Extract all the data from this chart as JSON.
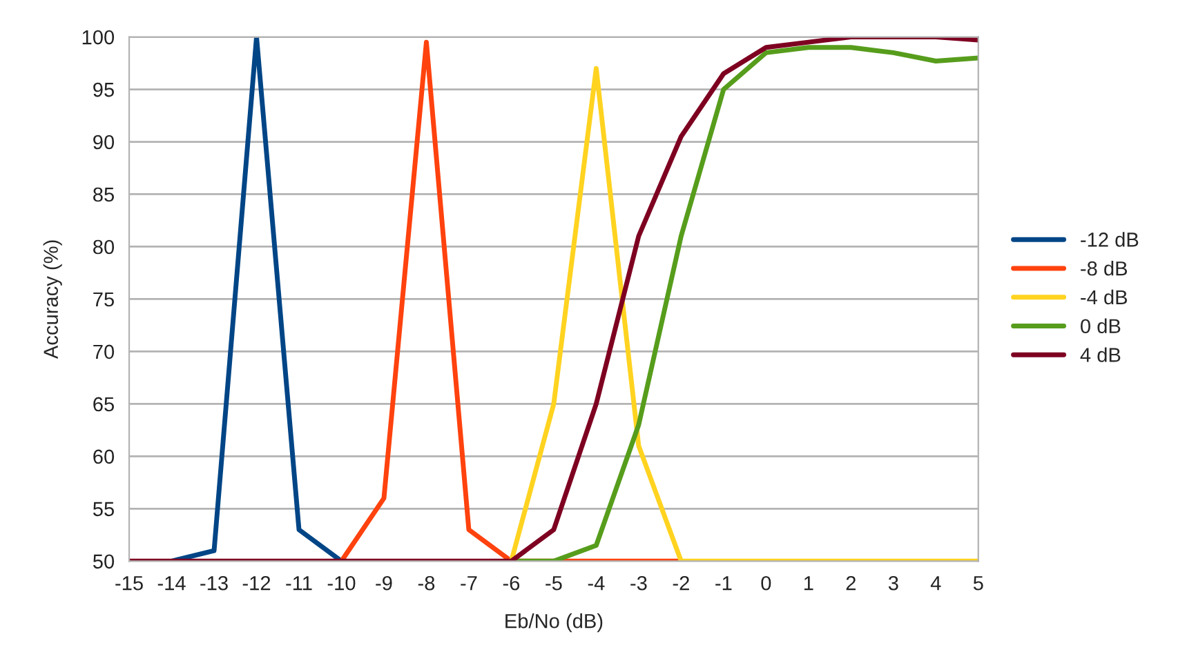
{
  "chart_data": {
    "type": "line",
    "xlabel": "Eb/No (dB)",
    "ylabel": "Accuracy (%)",
    "x": [
      -15,
      -14,
      -13,
      -12,
      -11,
      -10,
      -9,
      -8,
      -7,
      -6,
      -5,
      -4,
      -3,
      -2,
      -1,
      0,
      1,
      2,
      3,
      4,
      5
    ],
    "series": [
      {
        "name": "-12 dB",
        "color": "#004586",
        "values": [
          null,
          50,
          51,
          100,
          53,
          50,
          null,
          null,
          null,
          null,
          null,
          null,
          null,
          null,
          null,
          null,
          null,
          null,
          null,
          null,
          null
        ]
      },
      {
        "name": "-8 dB",
        "color": "#ff420e",
        "values": [
          null,
          null,
          null,
          null,
          null,
          50,
          56,
          99.5,
          53,
          50,
          50,
          50,
          50,
          50,
          null,
          null,
          null,
          null,
          null,
          null,
          null
        ]
      },
      {
        "name": "-4 dB",
        "color": "#ffd320",
        "values": [
          null,
          null,
          null,
          null,
          null,
          null,
          null,
          null,
          null,
          50,
          65,
          97,
          61,
          50,
          50,
          50,
          50,
          50,
          50,
          50,
          50
        ]
      },
      {
        "name": "0 dB",
        "color": "#579d1c",
        "values": [
          null,
          null,
          null,
          null,
          null,
          null,
          null,
          null,
          null,
          50,
          50,
          51.5,
          63,
          81,
          95,
          98.5,
          99,
          99,
          98.5,
          97.7,
          98
        ]
      },
      {
        "name": "4 dB",
        "color": "#7e0021",
        "values": [
          50,
          50,
          50,
          50,
          50,
          50,
          50,
          50,
          50,
          50,
          53,
          65,
          81,
          90.5,
          96.5,
          99,
          99.5,
          100,
          100,
          100,
          99.7
        ]
      }
    ],
    "xlim": [
      -15,
      5
    ],
    "xticks": [
      -15,
      -14,
      -13,
      -12,
      -11,
      -10,
      -9,
      -8,
      -7,
      -6,
      -5,
      -4,
      -3,
      -2,
      -1,
      0,
      1,
      2,
      3,
      4,
      5
    ],
    "ylim": [
      50,
      100
    ],
    "yticks": [
      50,
      55,
      60,
      65,
      70,
      75,
      80,
      85,
      90,
      95,
      100
    ],
    "grid": "y",
    "legend": "right",
    "marker": "none",
    "line_style": "solid"
  }
}
